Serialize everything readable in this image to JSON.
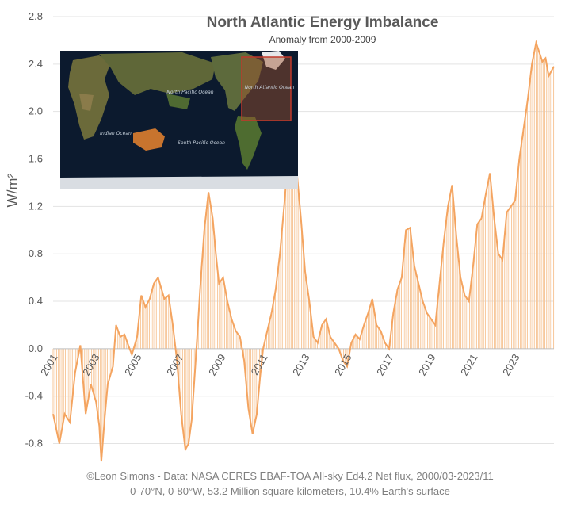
{
  "chart_data": {
    "type": "line",
    "title": "North Atlantic Energy Imbalance",
    "subtitle": "Anomaly from 2000-2009",
    "ylabel": "W/m²",
    "xlabel": "",
    "ylim": [
      -0.95,
      2.8
    ],
    "y_ticks": [
      2.8,
      2.4,
      2.0,
      1.6,
      1.2,
      0.8,
      0.4,
      0.0,
      -0.4,
      -0.8
    ],
    "y_tick_labels": [
      "2.8",
      "2.4",
      "2.0",
      "1.6",
      "1.2",
      "0.8",
      "0.4",
      "0.0",
      "-0.4",
      "-0.8"
    ],
    "xlim": [
      2001.0,
      2024.85
    ],
    "x_tick_labels": [
      "2001",
      "2003",
      "2005",
      "2007",
      "2009",
      "2011",
      "2013",
      "2015",
      "2017",
      "2019",
      "2021",
      "2023"
    ],
    "grid": true,
    "line_color": "#f4a460",
    "drop_line_color": "#f7c79a",
    "series": [
      {
        "name": "",
        "x": [
          2001.0,
          2001.3,
          2001.55,
          2001.8,
          2002.05,
          2002.3,
          2002.55,
          2002.8,
          2003.05,
          2003.2,
          2003.3,
          2003.45,
          2003.6,
          2003.85,
          2004.0,
          2004.2,
          2004.4,
          2004.6,
          2004.75,
          2005.0,
          2005.2,
          2005.4,
          2005.6,
          2005.8,
          2006.0,
          2006.3,
          2006.5,
          2006.7,
          2006.9,
          2007.1,
          2007.3,
          2007.45,
          2007.6,
          2007.75,
          2007.9,
          2008.0,
          2008.2,
          2008.4,
          2008.6,
          2008.75,
          2008.9,
          2009.1,
          2009.3,
          2009.5,
          2009.7,
          2009.9,
          2010.1,
          2010.3,
          2010.5,
          2010.7,
          2010.85,
          2011.0,
          2011.2,
          2011.4,
          2011.6,
          2011.8,
          2012.0,
          2012.2,
          2012.4,
          2012.6,
          2012.8,
          2013.0,
          2013.2,
          2013.4,
          2013.6,
          2013.8,
          2014.0,
          2014.2,
          2014.4,
          2014.6,
          2014.8,
          2015.0,
          2015.2,
          2015.4,
          2015.6,
          2015.8,
          2016.0,
          2016.2,
          2016.4,
          2016.6,
          2016.8,
          2017.0,
          2017.2,
          2017.4,
          2017.6,
          2017.8,
          2018.0,
          2018.2,
          2018.4,
          2018.6,
          2018.8,
          2019.0,
          2019.2,
          2019.4,
          2019.6,
          2019.8,
          2020.0,
          2020.2,
          2020.4,
          2020.6,
          2020.8,
          2021.0,
          2021.2,
          2021.4,
          2021.6,
          2021.8,
          2022.0,
          2022.2,
          2022.4,
          2022.6,
          2022.8,
          2023.0,
          2023.2,
          2023.4,
          2023.6,
          2023.8,
          2024.0,
          2024.15,
          2024.3,
          2024.45,
          2024.6,
          2024.75,
          2024.85
        ],
        "values": [
          -0.55,
          -0.8,
          -0.55,
          -0.62,
          -0.2,
          0.03,
          -0.55,
          -0.3,
          -0.45,
          -0.65,
          -0.95,
          -0.6,
          -0.3,
          -0.15,
          0.2,
          0.1,
          0.12,
          0.02,
          -0.05,
          0.1,
          0.45,
          0.35,
          0.42,
          0.55,
          0.6,
          0.42,
          0.45,
          0.2,
          -0.1,
          -0.55,
          -0.85,
          -0.8,
          -0.6,
          -0.2,
          0.2,
          0.5,
          1.0,
          1.32,
          1.1,
          0.8,
          0.55,
          0.6,
          0.4,
          0.25,
          0.15,
          0.1,
          -0.1,
          -0.5,
          -0.72,
          -0.55,
          -0.25,
          0.0,
          0.15,
          0.3,
          0.5,
          0.8,
          1.2,
          1.62,
          1.55,
          1.5,
          1.1,
          0.65,
          0.4,
          0.1,
          0.05,
          0.2,
          0.25,
          0.1,
          0.05,
          0.0,
          -0.1,
          -0.15,
          0.05,
          0.12,
          0.08,
          0.2,
          0.3,
          0.42,
          0.2,
          0.15,
          0.05,
          0.0,
          0.3,
          0.5,
          0.6,
          1.0,
          1.02,
          0.7,
          0.55,
          0.4,
          0.3,
          0.25,
          0.2,
          0.55,
          0.9,
          1.2,
          1.38,
          0.95,
          0.6,
          0.45,
          0.4,
          0.7,
          1.05,
          1.1,
          1.3,
          1.48,
          1.1,
          0.8,
          0.75,
          1.15,
          1.2,
          1.25,
          1.6,
          1.85,
          2.1,
          2.4,
          2.58,
          2.5,
          2.42,
          2.45,
          2.3,
          2.35,
          2.38
        ]
      }
    ],
    "map_labels": [
      "North Pacific Ocean",
      "North Atlantic Ocean",
      "Indian Ocean",
      "South Pacific Ocean"
    ],
    "footer_lines": [
      "©Leon Simons - Data: NASA CERES EBAF-TOA All-sky Ed4.2 Net flux, 2000/03-2023/11",
      "0-70°N, 0-80°W, 53.2 Million square kilometers, 10.4% Earth's surface"
    ]
  }
}
